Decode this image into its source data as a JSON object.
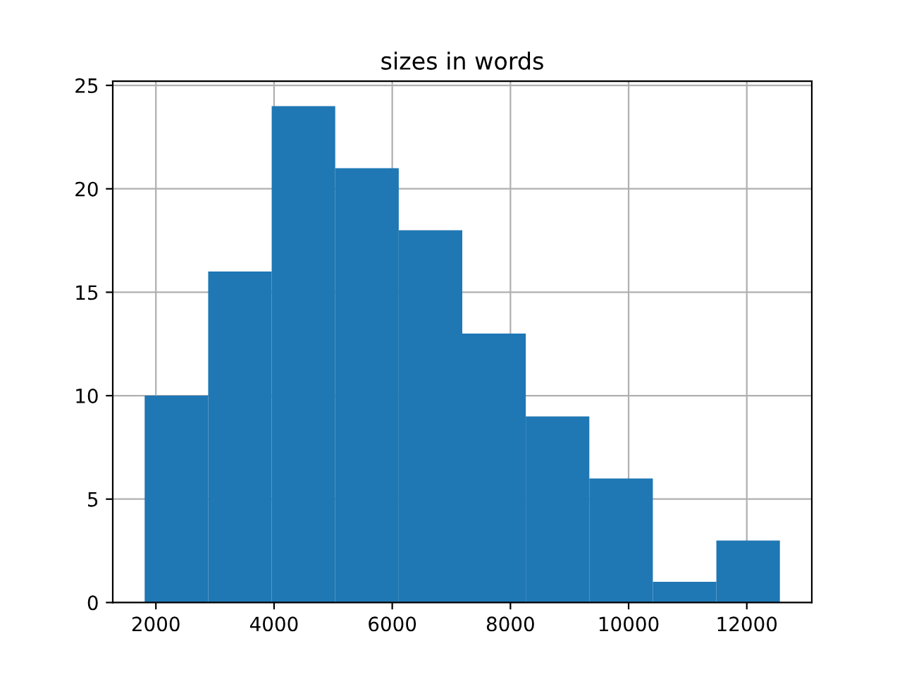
{
  "chart_data": {
    "type": "histogram",
    "title": "sizes in words",
    "bins": [
      1810,
      2885,
      3960,
      5035,
      6110,
      7185,
      8260,
      9335,
      10410,
      11485,
      12560
    ],
    "values": [
      10,
      16,
      24,
      21,
      18,
      13,
      9,
      6,
      1,
      3
    ],
    "color": "#1f77b4",
    "xlim": [
      1270,
      13100
    ],
    "xticks": [
      2000,
      4000,
      6000,
      8000,
      10000,
      12000
    ],
    "ylim": [
      0,
      25.2
    ],
    "yticks": [
      0,
      5,
      10,
      15,
      20,
      25
    ],
    "grid": true
  }
}
